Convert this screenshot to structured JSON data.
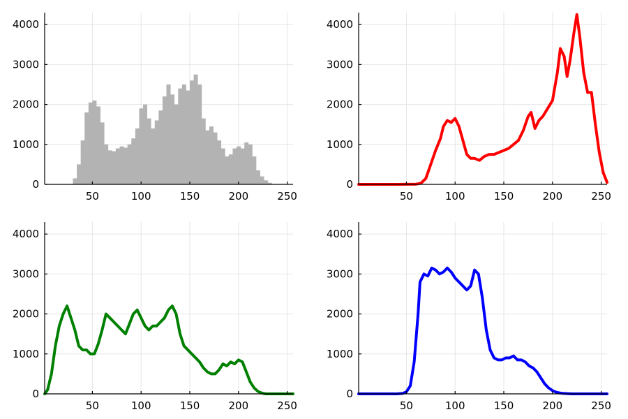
{
  "chart_data": [
    {
      "id": "gray",
      "type": "bar",
      "color": "#b3b3b3",
      "title": "",
      "xlabel": "",
      "ylabel": "",
      "xlim": [
        1,
        256
      ],
      "ylim": [
        0,
        4300
      ],
      "grid": true,
      "legend": "none",
      "xticks": [
        50,
        100,
        150,
        200,
        250
      ],
      "yticks": [
        0,
        1000,
        2000,
        3000,
        4000
      ],
      "xtick_labels": [
        "50",
        "100",
        "150",
        "200",
        "250"
      ],
      "ytick_labels": [
        "0",
        "1000",
        "2000",
        "3000",
        "4000"
      ],
      "x": [
        28,
        32,
        36,
        40,
        44,
        48,
        52,
        56,
        60,
        64,
        68,
        72,
        76,
        80,
        84,
        88,
        92,
        96,
        100,
        104,
        108,
        112,
        116,
        120,
        124,
        128,
        132,
        136,
        140,
        144,
        148,
        152,
        156,
        160,
        164,
        168,
        172,
        176,
        180,
        184,
        188,
        192,
        196,
        200,
        204,
        208,
        212,
        216,
        220,
        224,
        228,
        232,
        236
      ],
      "values": [
        0,
        150,
        500,
        1100,
        1800,
        2050,
        2100,
        1950,
        1550,
        1000,
        850,
        830,
        900,
        950,
        920,
        1000,
        1150,
        1400,
        1900,
        2000,
        1650,
        1400,
        1600,
        1850,
        2200,
        2500,
        2250,
        2000,
        2400,
        2500,
        2350,
        2600,
        2750,
        2500,
        1650,
        1350,
        1450,
        1300,
        1100,
        900,
        700,
        750,
        900,
        950,
        900,
        1050,
        1000,
        700,
        350,
        200,
        100,
        40,
        0
      ]
    },
    {
      "id": "red",
      "type": "line",
      "color": "#ff0000",
      "title": "",
      "xlabel": "",
      "ylabel": "",
      "xlim": [
        1,
        256
      ],
      "ylim": [
        0,
        4300
      ],
      "grid": true,
      "legend": "none",
      "xticks": [
        50,
        100,
        150,
        200,
        250
      ],
      "yticks": [
        0,
        1000,
        2000,
        3000,
        4000
      ],
      "xtick_labels": [
        "50",
        "100",
        "150",
        "200",
        "250"
      ],
      "ytick_labels": [
        "0",
        "1000",
        "2000",
        "3000",
        "4000"
      ],
      "x": [
        1,
        40,
        60,
        65,
        70,
        75,
        80,
        85,
        88,
        92,
        96,
        100,
        104,
        108,
        112,
        116,
        120,
        125,
        130,
        135,
        140,
        145,
        150,
        155,
        160,
        165,
        170,
        175,
        178,
        182,
        186,
        190,
        195,
        200,
        205,
        208,
        212,
        215,
        218,
        222,
        225,
        228,
        232,
        236,
        240,
        244,
        248,
        252,
        256
      ],
      "values": [
        0,
        0,
        5,
        30,
        150,
        500,
        850,
        1150,
        1450,
        1600,
        1550,
        1650,
        1450,
        1100,
        750,
        650,
        650,
        600,
        700,
        750,
        750,
        800,
        850,
        900,
        1000,
        1100,
        1350,
        1700,
        1800,
        1400,
        1600,
        1700,
        1900,
        2100,
        2800,
        3400,
        3200,
        2700,
        3100,
        3800,
        4250,
        3700,
        2800,
        2300,
        2300,
        1500,
        800,
        300,
        50
      ]
    },
    {
      "id": "green",
      "type": "line",
      "color": "#008000",
      "title": "",
      "xlabel": "",
      "ylabel": "",
      "xlim": [
        1,
        256
      ],
      "ylim": [
        0,
        4300
      ],
      "grid": true,
      "legend": "none",
      "xticks": [
        50,
        100,
        150,
        200,
        250
      ],
      "yticks": [
        0,
        1000,
        2000,
        3000,
        4000
      ],
      "xtick_labels": [
        "50",
        "100",
        "150",
        "200",
        "250"
      ],
      "ytick_labels": [
        "0",
        "1000",
        "2000",
        "3000",
        "4000"
      ],
      "x": [
        1,
        4,
        8,
        12,
        16,
        20,
        24,
        28,
        32,
        36,
        40,
        44,
        48,
        52,
        56,
        60,
        64,
        68,
        72,
        76,
        80,
        84,
        88,
        92,
        96,
        100,
        104,
        108,
        112,
        116,
        120,
        124,
        128,
        132,
        136,
        140,
        144,
        148,
        152,
        156,
        160,
        164,
        168,
        172,
        176,
        180,
        184,
        188,
        192,
        196,
        200,
        204,
        208,
        212,
        216,
        220,
        224,
        228,
        232,
        240,
        256
      ],
      "values": [
        0,
        100,
        500,
        1200,
        1700,
        2000,
        2200,
        1900,
        1600,
        1200,
        1100,
        1100,
        1000,
        1000,
        1250,
        1600,
        2000,
        1900,
        1800,
        1700,
        1600,
        1500,
        1750,
        2000,
        2100,
        1900,
        1700,
        1600,
        1700,
        1700,
        1800,
        1900,
        2100,
        2200,
        2000,
        1500,
        1200,
        1100,
        1000,
        900,
        800,
        650,
        550,
        500,
        500,
        600,
        750,
        700,
        800,
        750,
        850,
        800,
        550,
        300,
        150,
        60,
        20,
        0,
        0,
        0,
        0
      ]
    },
    {
      "id": "blue",
      "type": "line",
      "color": "#0000ff",
      "title": "",
      "xlabel": "",
      "ylabel": "",
      "xlim": [
        1,
        256
      ],
      "ylim": [
        0,
        4300
      ],
      "grid": true,
      "legend": "none",
      "xticks": [
        50,
        100,
        150,
        200,
        250
      ],
      "yticks": [
        0,
        1000,
        2000,
        3000,
        4000
      ],
      "xtick_labels": [
        "50",
        "100",
        "150",
        "200",
        "250"
      ],
      "ytick_labels": [
        "0",
        "1000",
        "2000",
        "3000",
        "4000"
      ],
      "x": [
        1,
        40,
        46,
        50,
        54,
        58,
        62,
        64,
        68,
        72,
        76,
        80,
        84,
        88,
        92,
        96,
        100,
        104,
        108,
        112,
        116,
        120,
        124,
        128,
        132,
        136,
        140,
        144,
        148,
        152,
        156,
        160,
        164,
        168,
        172,
        176,
        180,
        184,
        188,
        192,
        196,
        200,
        204,
        208,
        212,
        216,
        220,
        230,
        256
      ],
      "values": [
        0,
        0,
        10,
        50,
        200,
        800,
        2000,
        2800,
        3000,
        2950,
        3150,
        3100,
        3000,
        3050,
        3150,
        3050,
        2900,
        2800,
        2700,
        2600,
        2700,
        3100,
        3000,
        2400,
        1600,
        1100,
        900,
        850,
        850,
        900,
        900,
        950,
        850,
        850,
        800,
        700,
        650,
        550,
        400,
        250,
        150,
        80,
        40,
        20,
        10,
        5,
        0,
        0,
        0
      ]
    }
  ]
}
